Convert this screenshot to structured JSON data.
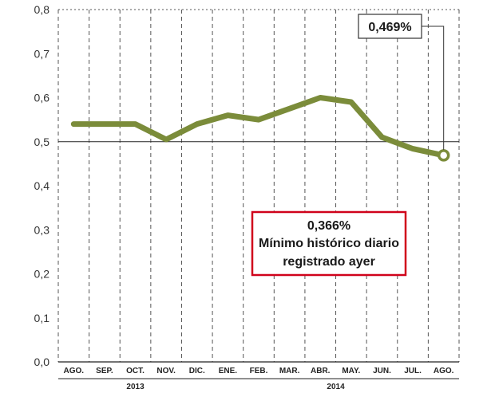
{
  "chart_data": {
    "type": "line",
    "categories": [
      "AGO.",
      "SEP.",
      "OCT.",
      "NOV.",
      "DIC.",
      "ENE.",
      "FEB.",
      "MAR.",
      "ABR.",
      "MAY.",
      "JUN.",
      "JUL.",
      "AGO."
    ],
    "year_groups": [
      {
        "label": "2013",
        "start": 0,
        "end": 4
      },
      {
        "label": "2014",
        "start": 5,
        "end": 12
      }
    ],
    "series": [
      {
        "values": [
          0.54,
          0.54,
          0.54,
          0.505,
          0.54,
          0.56,
          0.55,
          0.575,
          0.6,
          0.59,
          0.51,
          0.484,
          0.469
        ]
      }
    ],
    "ylim": [
      0,
      0.8
    ],
    "yticks": [
      "0,0",
      "0,1",
      "0,2",
      "0,3",
      "0,4",
      "0,5",
      "0,6",
      "0,7",
      "0,8"
    ],
    "reference_line": 0.5,
    "line_color": "#7b8c3a",
    "callout": {
      "label": "0,469%",
      "point_index": 12
    },
    "note": {
      "lines": [
        "0,366%",
        "Mínimo histórico diario",
        "registrado ayer"
      ],
      "border_color": "#d0021b"
    },
    "grid": "vertical-dashed"
  }
}
